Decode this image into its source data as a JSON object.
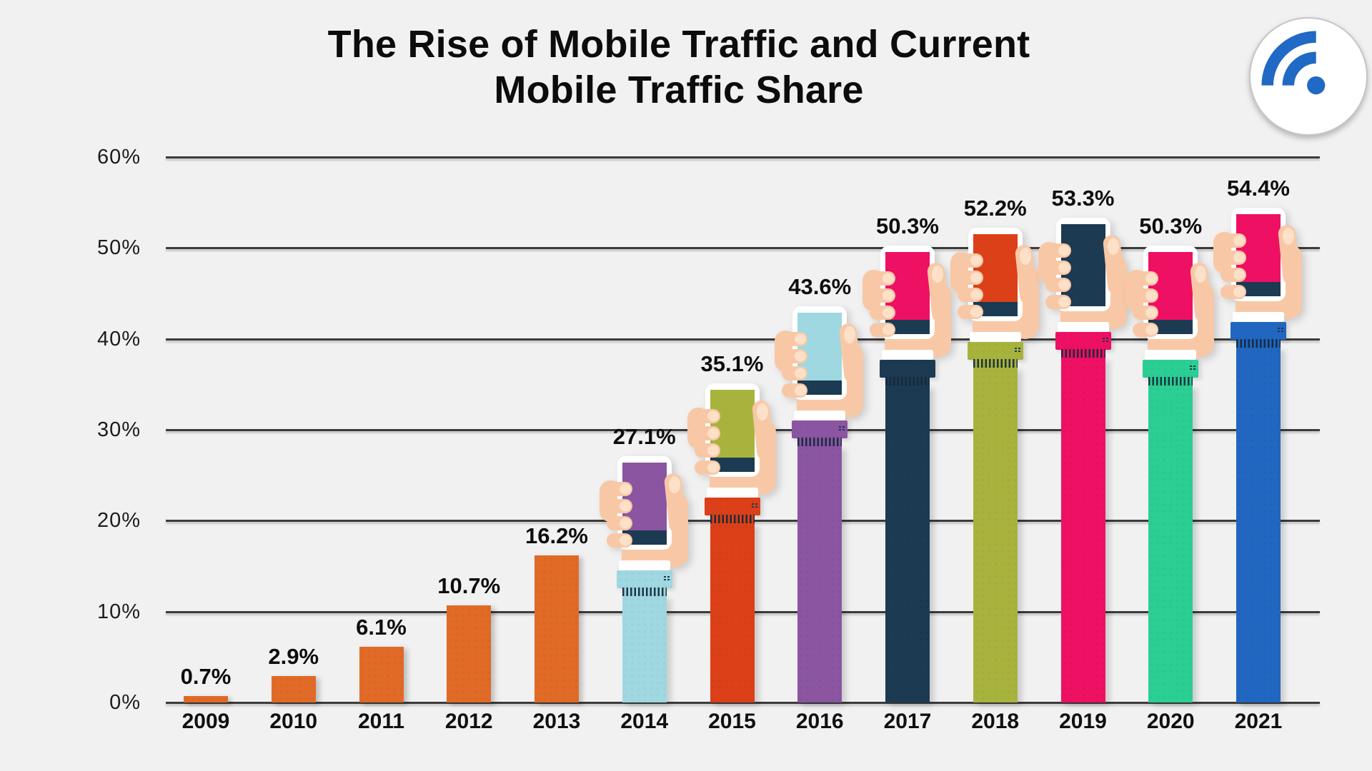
{
  "title": {
    "line1": "The Rise of Mobile Traffic and Current",
    "line2": "Mobile Traffic Share"
  },
  "logo": {
    "icon": "wifi-arcs-icon",
    "icon_color": "#2069C5",
    "background": "#FFFFFF"
  },
  "y_axis": {
    "tick_labels": [
      "60%",
      "50%",
      "40%",
      "30%",
      "20%",
      "10%",
      "0%"
    ]
  },
  "chart_data": {
    "type": "bar",
    "title": "The Rise of Mobile Traffic and Current Mobile Traffic Share",
    "categories": [
      "2009",
      "2010",
      "2011",
      "2012",
      "2013",
      "2014",
      "2015",
      "2016",
      "2017",
      "2018",
      "2019",
      "2020",
      "2021"
    ],
    "values": [
      0.7,
      2.9,
      6.1,
      10.7,
      16.2,
      27.1,
      35.1,
      43.6,
      50.3,
      52.2,
      53.3,
      50.3,
      54.4
    ],
    "value_labels": [
      "0.7%",
      "2.9%",
      "6.1%",
      "10.7%",
      "16.2%",
      "27.1%",
      "35.1%",
      "43.6%",
      "50.3%",
      "52.2%",
      "53.3%",
      "50.3%",
      "54.4%"
    ],
    "ylim": [
      0,
      60
    ],
    "y_ticks": [
      0,
      10,
      20,
      30,
      40,
      50,
      60
    ],
    "grid": true,
    "legend": false,
    "bars": [
      {
        "year": "2009",
        "style": "plain",
        "color": "#E06A26"
      },
      {
        "year": "2010",
        "style": "plain",
        "color": "#E06A26"
      },
      {
        "year": "2011",
        "style": "plain",
        "color": "#E06A26"
      },
      {
        "year": "2012",
        "style": "plain",
        "color": "#E06A26"
      },
      {
        "year": "2013",
        "style": "plain",
        "color": "#E06A26"
      },
      {
        "year": "2014",
        "style": "hand-phone",
        "color": "#9FD8E0",
        "screen_color": "#8B55A2"
      },
      {
        "year": "2015",
        "style": "hand-phone",
        "color": "#DB4019",
        "screen_color": "#A8B33E"
      },
      {
        "year": "2016",
        "style": "hand-phone",
        "color": "#8B55A2",
        "screen_color": "#9FD8E0"
      },
      {
        "year": "2017",
        "style": "hand-phone",
        "color": "#1C3A52",
        "screen_color": "#EE1063"
      },
      {
        "year": "2018",
        "style": "hand-phone",
        "color": "#A8B33E",
        "screen_color": "#DB4019"
      },
      {
        "year": "2019",
        "style": "hand-phone",
        "color": "#EE1063",
        "screen_color": "#1C3A52"
      },
      {
        "year": "2020",
        "style": "hand-phone",
        "color": "#2BCE93",
        "screen_color": "#EE1063"
      },
      {
        "year": "2021",
        "style": "hand-phone",
        "color": "#2166C0",
        "screen_color": "#EE1063"
      }
    ],
    "illustration_colors": {
      "skin": "#F8C8A6",
      "skin_light": "#FCE0C7",
      "phone_frame": "#FFFFFF",
      "screen_band_navy": "#1C3A52",
      "shirt_cuff_white": "#FFFFFF"
    }
  }
}
